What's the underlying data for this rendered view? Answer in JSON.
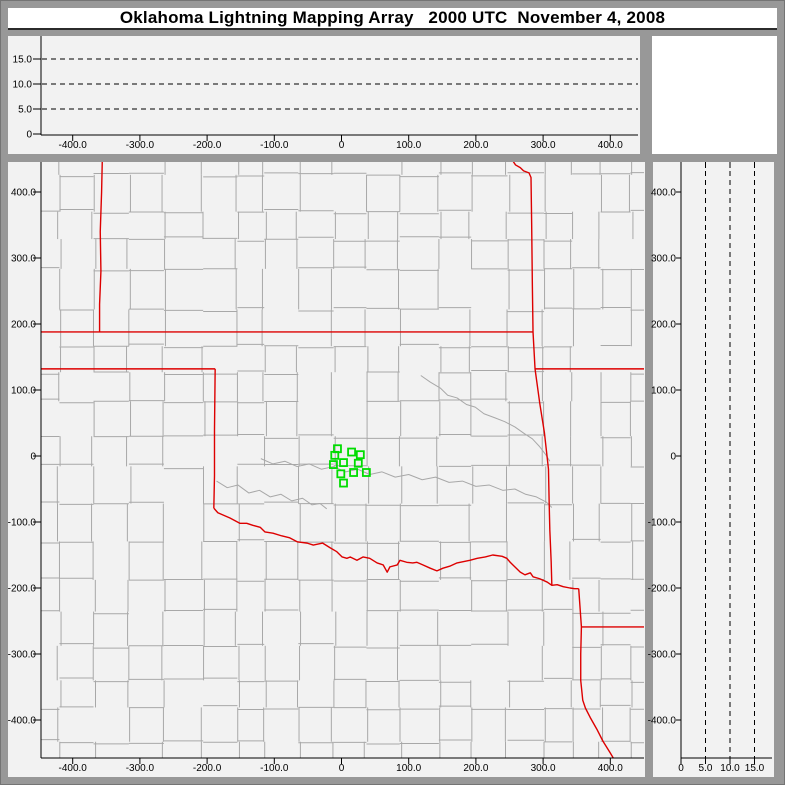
{
  "window": {
    "title": "Oklahoma Lightning Mapping Array   2000 UTC  November 4, 2008"
  },
  "colors": {
    "frame": "#989898",
    "panel_bg": "#f2f2f2",
    "histogram_bg": "#ffffff",
    "county_line": "#a8a8a8",
    "state_border": "#dd0000",
    "station_green": "#00dd00",
    "axis": "#000000"
  },
  "axes": {
    "east_west_km": {
      "values": [
        -400,
        -300,
        -200,
        -100,
        0,
        100,
        200,
        300,
        400
      ],
      "labels": [
        "-400.0",
        "-300.0",
        "-200.0",
        "-100.0",
        "0",
        "100.0",
        "200.0",
        "300.0",
        "400.0"
      ]
    },
    "north_south_km": {
      "values": [
        400,
        300,
        200,
        100,
        0,
        -100,
        -200,
        -300,
        -400
      ],
      "labels": [
        "400.0",
        "300.0",
        "200.0",
        "100.0",
        "0",
        "-100.0",
        "-200.0",
        "-300.0",
        "-400.0"
      ]
    },
    "altitude_km": {
      "values": [
        0,
        5,
        10,
        15
      ],
      "labels": [
        "0",
        "5.0",
        "10.0",
        "15.0"
      ]
    },
    "altitude_dashed_gridlines_km": [
      5,
      10,
      15
    ]
  },
  "chart_data": [
    {
      "type": "scatter",
      "panel": "plan-view-map",
      "x_range_km": [
        -448,
        450
      ],
      "y_range_km": [
        -458,
        445
      ],
      "series": [
        {
          "name": "LMA station squares",
          "points_km": [
            [
              -6,
              11
            ],
            [
              -10,
              1
            ],
            [
              15,
              6
            ],
            [
              28,
              2
            ],
            [
              3,
              -10
            ],
            [
              -12,
              -13
            ],
            [
              25,
              -11
            ],
            [
              -1,
              -27
            ],
            [
              18,
              -25
            ],
            [
              37,
              -25
            ],
            [
              3,
              -41
            ]
          ]
        }
      ],
      "grid": "county and state boundaries",
      "legend": "none"
    },
    {
      "type": "scatter",
      "panel": "altitude-vs-east-west",
      "x_range_km": [
        -448,
        450
      ],
      "y_range_km": [
        0,
        19.5
      ],
      "series": [],
      "gridlines_km": [
        5,
        10,
        15
      ],
      "legend": "none"
    },
    {
      "type": "scatter",
      "panel": "altitude-vs-north-south",
      "x_range_km": [
        0,
        18.5
      ],
      "y_range_km": [
        -458,
        445
      ],
      "series": [],
      "gridlines_km": [
        5,
        10,
        15
      ],
      "legend": "none"
    }
  ],
  "map": {
    "stations_km": [
      [
        -6,
        11
      ],
      [
        -10,
        1
      ],
      [
        15,
        6
      ],
      [
        28,
        2
      ],
      [
        3,
        -10
      ],
      [
        -12,
        -13
      ],
      [
        25,
        -11
      ],
      [
        -1,
        -27
      ],
      [
        18,
        -25
      ],
      [
        37,
        -25
      ],
      [
        3,
        -41
      ]
    ],
    "state_borders_km": [
      {
        "name": "kansas-colorado-border",
        "pts": [
          [
            -356,
            447
          ],
          [
            -357,
            400
          ],
          [
            -359,
            340
          ],
          [
            -358,
            280
          ],
          [
            -360,
            230
          ],
          [
            -360,
            188
          ]
        ]
      },
      {
        "name": "kansas-oklahoma-border-37n",
        "pts": [
          [
            -448,
            188
          ],
          [
            285,
            188
          ]
        ]
      },
      {
        "name": "eastern-state-border",
        "pts": [
          [
            255,
            447
          ],
          [
            259,
            441
          ],
          [
            266,
            437
          ],
          [
            271,
            432
          ],
          [
            279,
            429
          ],
          [
            282,
            422
          ],
          [
            283,
            350
          ],
          [
            284,
            260
          ],
          [
            285,
            188
          ],
          [
            288,
            132
          ],
          [
            295,
            80
          ],
          [
            302,
            35
          ],
          [
            308,
            -20
          ],
          [
            309,
            -70
          ],
          [
            310,
            -112
          ],
          [
            312,
            -160
          ],
          [
            313,
            -196
          ]
        ]
      },
      {
        "name": "missouri-arkansas-border-365n",
        "pts": [
          [
            288,
            132
          ],
          [
            452,
            132
          ]
        ]
      },
      {
        "name": "panhandle-border-365n",
        "pts": [
          [
            -448,
            132
          ],
          [
            -188,
            132
          ]
        ]
      },
      {
        "name": "100th-meridian-border",
        "pts": [
          [
            -188,
            132
          ],
          [
            -189,
            40
          ],
          [
            -189,
            -30
          ],
          [
            -190,
            -79
          ]
        ]
      },
      {
        "name": "red-river-border",
        "pts": [
          [
            -190,
            -79
          ],
          [
            -184,
            -86
          ],
          [
            -166,
            -94
          ],
          [
            -151,
            -102
          ],
          [
            -141,
            -102
          ],
          [
            -132,
            -105
          ],
          [
            -121,
            -108
          ],
          [
            -114,
            -115
          ],
          [
            -102,
            -117
          ],
          [
            -89,
            -121
          ],
          [
            -77,
            -124
          ],
          [
            -66,
            -130
          ],
          [
            -51,
            -132
          ],
          [
            -42,
            -135
          ],
          [
            -28,
            -132
          ],
          [
            -17,
            -139
          ],
          [
            -7,
            -145
          ],
          [
            1,
            -153
          ],
          [
            8,
            -155
          ],
          [
            13,
            -153
          ],
          [
            23,
            -158
          ],
          [
            32,
            -153
          ],
          [
            42,
            -155
          ],
          [
            53,
            -162
          ],
          [
            62,
            -165
          ],
          [
            68,
            -176
          ],
          [
            72,
            -168
          ],
          [
            83,
            -165
          ],
          [
            87,
            -158
          ],
          [
            97,
            -161
          ],
          [
            106,
            -162
          ],
          [
            112,
            -161
          ],
          [
            121,
            -165
          ],
          [
            132,
            -170
          ],
          [
            142,
            -174
          ],
          [
            151,
            -170
          ],
          [
            161,
            -167
          ],
          [
            172,
            -162
          ],
          [
            191,
            -158
          ],
          [
            202,
            -155
          ],
          [
            214,
            -153
          ],
          [
            225,
            -150
          ],
          [
            239,
            -152
          ],
          [
            246,
            -155
          ],
          [
            251,
            -161
          ],
          [
            258,
            -168
          ],
          [
            266,
            -176
          ],
          [
            273,
            -180
          ],
          [
            281,
            -177
          ],
          [
            285,
            -183
          ],
          [
            295,
            -186
          ],
          [
            306,
            -191
          ],
          [
            313,
            -196
          ],
          [
            321,
            -195
          ],
          [
            330,
            -198
          ],
          [
            340,
            -200
          ],
          [
            347,
            -201
          ],
          [
            353,
            -201
          ]
        ]
      },
      {
        "name": "texas-arkansas-border",
        "pts": [
          [
            353,
            -201
          ],
          [
            355,
            -230
          ],
          [
            357,
            -259
          ],
          [
            356,
            -300
          ],
          [
            356,
            -340
          ],
          [
            359,
            -370
          ],
          [
            363,
            -382
          ],
          [
            370,
            -396
          ],
          [
            380,
            -414
          ],
          [
            389,
            -432
          ],
          [
            400,
            -450
          ],
          [
            407,
            -462
          ]
        ]
      },
      {
        "name": "arkansas-louisiana-border-33n",
        "pts": [
          [
            357,
            -259
          ],
          [
            452,
            -259
          ]
        ]
      }
    ],
    "rivers_km": [
      {
        "name": "arkansas-river",
        "pts": [
          [
            118,
            122
          ],
          [
            132,
            112
          ],
          [
            147,
            103
          ],
          [
            158,
            92
          ],
          [
            172,
            88
          ],
          [
            186,
            78
          ],
          [
            199,
            74
          ],
          [
            212,
            64
          ],
          [
            228,
            58
          ],
          [
            243,
            52
          ],
          [
            258,
            44
          ],
          [
            272,
            34
          ],
          [
            284,
            26
          ],
          [
            295,
            14
          ],
          [
            304,
            2
          ],
          [
            310,
            -8
          ]
        ]
      },
      {
        "name": "canadian-river",
        "pts": [
          [
            -120,
            -4
          ],
          [
            -102,
            -12
          ],
          [
            -84,
            -8
          ],
          [
            -66,
            -16
          ],
          [
            -48,
            -12
          ],
          [
            -30,
            -20
          ],
          [
            -12,
            -16
          ],
          [
            6,
            -24
          ],
          [
            24,
            -20
          ],
          [
            42,
            -28
          ],
          [
            60,
            -24
          ],
          [
            80,
            -32
          ],
          [
            100,
            -28
          ],
          [
            120,
            -36
          ],
          [
            140,
            -32
          ],
          [
            160,
            -40
          ],
          [
            180,
            -38
          ],
          [
            200,
            -46
          ],
          [
            220,
            -44
          ],
          [
            240,
            -52
          ],
          [
            258,
            -50
          ],
          [
            274,
            -58
          ],
          [
            290,
            -62
          ],
          [
            305,
            -70
          ],
          [
            313,
            -78
          ]
        ]
      },
      {
        "name": "washita-river",
        "pts": [
          [
            -186,
            -38
          ],
          [
            -170,
            -48
          ],
          [
            -154,
            -44
          ],
          [
            -138,
            -56
          ],
          [
            -122,
            -52
          ],
          [
            -106,
            -62
          ],
          [
            -90,
            -58
          ],
          [
            -74,
            -68
          ],
          [
            -58,
            -64
          ],
          [
            -44,
            -74
          ],
          [
            -32,
            -72
          ],
          [
            -22,
            -80
          ]
        ]
      }
    ],
    "county_grid": {
      "seed": 11,
      "min_cell_km": 38,
      "cell_jitter_km": 24,
      "edge_draw_prob": 0.85,
      "line_jitter_km": 7
    }
  }
}
